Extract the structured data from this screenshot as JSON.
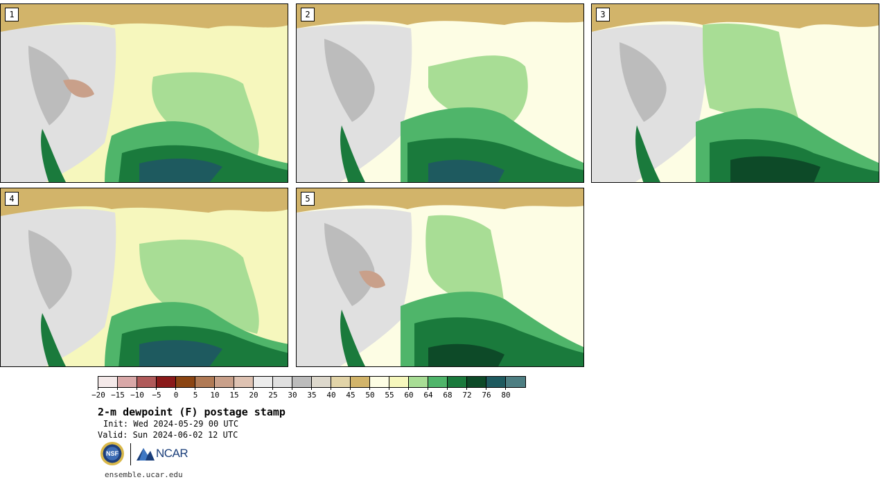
{
  "panels": [
    {
      "label": "1"
    },
    {
      "label": "2"
    },
    {
      "label": "3"
    },
    {
      "label": "4"
    },
    {
      "label": "5"
    }
  ],
  "colorbar": {
    "colors": [
      "#f4e9e9",
      "#d9a8a8",
      "#b05a5a",
      "#8a1a1a",
      "#8b4513",
      "#b07a55",
      "#c9a08a",
      "#dec2b2",
      "#ececec",
      "#e0e0e0",
      "#bcbcbc",
      "#ddd8cc",
      "#e2d4a8",
      "#d2b46a",
      "#fdfde4",
      "#f6f7bd",
      "#a8dd95",
      "#4fb56a",
      "#1a7a3c",
      "#0d4a28",
      "#1e5a5f",
      "#4d7e82"
    ],
    "tick_labels": [
      "−20",
      "−15",
      "−10",
      "−5",
      "0",
      "5",
      "10",
      "15",
      "20",
      "25",
      "30",
      "35",
      "40",
      "45",
      "50",
      "55",
      "60",
      "64",
      "68",
      "72",
      "76",
      "80"
    ]
  },
  "title": "2-m dewpoint (F) postage stamp",
  "init": "Init: Wed 2024-05-29 00 UTC",
  "valid": "Valid: Sun 2024-06-02 12 UTC",
  "logos": {
    "nsf": "NSF",
    "ncar": "NCAR"
  },
  "website": "ensemble.ucar.edu"
}
